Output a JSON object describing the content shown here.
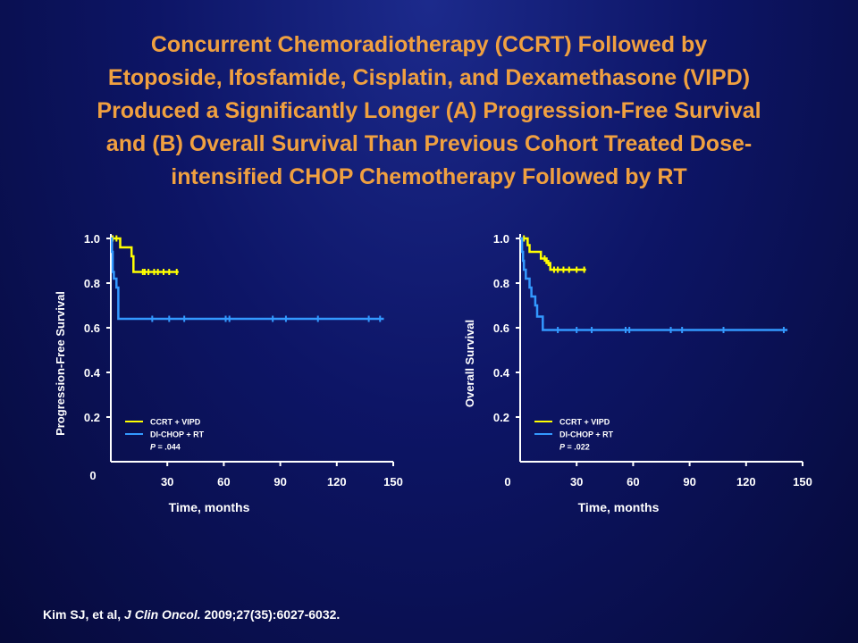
{
  "title_lines": [
    "Concurrent Chemoradiotherapy (CCRT) Followed by",
    "Etoposide, Ifosfamide, Cisplatin, and Dexamethasone (VIPD)",
    "Produced a Significantly Longer (A) Progression-Free Survival",
    "and (B) Overall Survival Than Previous Cohort Treated Dose-",
    "intensified CHOP Chemotherapy Followed by RT"
  ],
  "citation": {
    "authors": "Kim SJ, et al, ",
    "journal": "J Clin Oncol.",
    "details": " 2009;27(35):6027-6032."
  },
  "colors": {
    "ccrt": "#ffff00",
    "dichop": "#3399ff",
    "axis": "#ffffff"
  },
  "chart_data": [
    {
      "type": "line",
      "ylabel": "Progression-Free Survival",
      "xlabel": "Time, months",
      "xlim": [
        0,
        150
      ],
      "ylim": [
        0,
        1.0
      ],
      "xticks": [
        "30",
        "60",
        "90",
        "120",
        "150"
      ],
      "yticks": [
        "1.0",
        "0.8",
        "0.6",
        "0.4",
        "0.2"
      ],
      "origin_label": "0",
      "origin_position": "y-axis",
      "legend": {
        "position": "bottom-left",
        "p_prefix": "P",
        "p_value": " = .044"
      },
      "series": [
        {
          "name": "CCRT + VIPD",
          "color": "#ffff00",
          "steps": [
            [
              0,
              1.0
            ],
            [
              5,
              1.0
            ],
            [
              5,
              0.96
            ],
            [
              11,
              0.96
            ],
            [
              11,
              0.92
            ],
            [
              12,
              0.92
            ],
            [
              12,
              0.85
            ],
            [
              36,
              0.85
            ]
          ],
          "censors": [
            [
              1,
              1.0
            ],
            [
              3,
              1.0
            ],
            [
              17,
              0.85
            ],
            [
              18,
              0.85
            ],
            [
              20,
              0.85
            ],
            [
              23,
              0.85
            ],
            [
              25,
              0.85
            ],
            [
              28,
              0.85
            ],
            [
              31,
              0.85
            ],
            [
              35,
              0.85
            ]
          ]
        },
        {
          "name": "DI-CHOP + RT",
          "color": "#3399ff",
          "steps": [
            [
              0,
              1.0
            ],
            [
              0.6,
              1.0
            ],
            [
              0.6,
              0.94
            ],
            [
              1,
              0.94
            ],
            [
              1,
              0.85
            ],
            [
              1.6,
              0.85
            ],
            [
              1.6,
              0.82
            ],
            [
              3,
              0.82
            ],
            [
              3,
              0.78
            ],
            [
              4,
              0.78
            ],
            [
              4,
              0.64
            ],
            [
              145,
              0.64
            ]
          ],
          "censors": [
            [
              22,
              0.64
            ],
            [
              31,
              0.64
            ],
            [
              39,
              0.64
            ],
            [
              61,
              0.64
            ],
            [
              63,
              0.64
            ],
            [
              86,
              0.64
            ],
            [
              93,
              0.64
            ],
            [
              110,
              0.64
            ],
            [
              137,
              0.64
            ],
            [
              143,
              0.64
            ]
          ]
        }
      ]
    },
    {
      "type": "line",
      "ylabel": "Overall Survival",
      "xlabel": "Time, months",
      "xlim": [
        0,
        150
      ],
      "ylim": [
        0,
        1.0
      ],
      "xticks": [
        "30",
        "60",
        "90",
        "120",
        "150"
      ],
      "yticks": [
        "1.0",
        "0.8",
        "0.6",
        "0.4",
        "0.2"
      ],
      "origin_label": "0",
      "origin_position": "x-axis",
      "legend": {
        "position": "bottom-left",
        "p_prefix": "P",
        "p_value": " = .022"
      },
      "series": [
        {
          "name": "CCRT + VIPD",
          "color": "#ffff00",
          "steps": [
            [
              0,
              1.0
            ],
            [
              4,
              1.0
            ],
            [
              4,
              0.97
            ],
            [
              5,
              0.97
            ],
            [
              5,
              0.94
            ],
            [
              11,
              0.94
            ],
            [
              11,
              0.91
            ],
            [
              14,
              0.91
            ],
            [
              14,
              0.89
            ],
            [
              16,
              0.89
            ],
            [
              16,
              0.86
            ],
            [
              35,
              0.86
            ]
          ],
          "censors": [
            [
              2,
              1.0
            ],
            [
              13,
              0.91
            ],
            [
              15,
              0.89
            ],
            [
              18,
              0.86
            ],
            [
              20,
              0.86
            ],
            [
              23,
              0.86
            ],
            [
              26,
              0.86
            ],
            [
              30,
              0.86
            ],
            [
              34,
              0.86
            ]
          ]
        },
        {
          "name": "DI-CHOP + RT",
          "color": "#3399ff",
          "steps": [
            [
              0,
              1.0
            ],
            [
              1,
              1.0
            ],
            [
              1,
              0.94
            ],
            [
              1.5,
              0.94
            ],
            [
              1.5,
              0.9
            ],
            [
              2,
              0.9
            ],
            [
              2,
              0.86
            ],
            [
              3,
              0.86
            ],
            [
              3,
              0.82
            ],
            [
              5,
              0.82
            ],
            [
              5,
              0.78
            ],
            [
              6,
              0.78
            ],
            [
              6,
              0.74
            ],
            [
              8,
              0.74
            ],
            [
              8,
              0.7
            ],
            [
              9,
              0.7
            ],
            [
              9,
              0.65
            ],
            [
              12,
              0.65
            ],
            [
              12,
              0.59
            ],
            [
              142,
              0.59
            ]
          ],
          "censors": [
            [
              20,
              0.59
            ],
            [
              30,
              0.59
            ],
            [
              38,
              0.59
            ],
            [
              56,
              0.59
            ],
            [
              58,
              0.59
            ],
            [
              80,
              0.59
            ],
            [
              86,
              0.59
            ],
            [
              108,
              0.59
            ],
            [
              140,
              0.59
            ]
          ]
        }
      ]
    }
  ]
}
